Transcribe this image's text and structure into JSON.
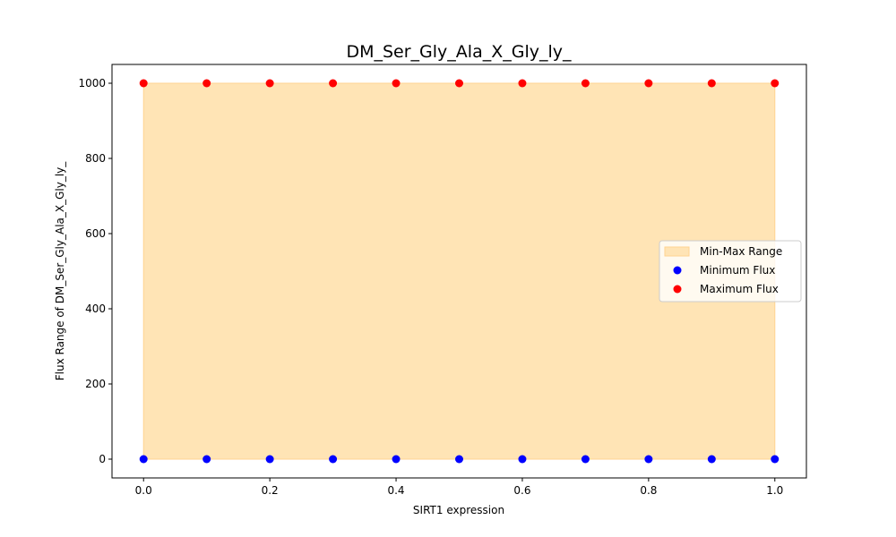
{
  "chart_data": {
    "type": "scatter",
    "title": "DM_Ser_Gly_Ala_X_Gly_ly_",
    "xlabel": "SIRT1 expression",
    "ylabel": "Flux Range of DM_Ser_Gly_Ala_X_Gly_ly_",
    "xlim": [
      -0.05,
      1.05
    ],
    "ylim": [
      -50,
      1050
    ],
    "xticks": [
      0.0,
      0.2,
      0.4,
      0.6,
      0.8,
      1.0
    ],
    "xtick_labels": [
      "0.0",
      "0.2",
      "0.4",
      "0.6",
      "0.8",
      "1.0"
    ],
    "yticks": [
      0,
      200,
      400,
      600,
      800,
      1000
    ],
    "ytick_labels": [
      "0",
      "200",
      "400",
      "600",
      "800",
      "1000"
    ],
    "x": [
      0.0,
      0.1,
      0.2,
      0.3,
      0.4,
      0.5,
      0.6,
      0.7,
      0.8,
      0.9,
      1.0
    ],
    "range_fill": {
      "name": "Min-Max Range",
      "color": "#ffe4b5",
      "edge_color": "#ffd391",
      "lower": [
        0,
        0,
        0,
        0,
        0,
        0,
        0,
        0,
        0,
        0,
        0
      ],
      "upper": [
        1000,
        1000,
        1000,
        1000,
        1000,
        1000,
        1000,
        1000,
        1000,
        1000,
        1000
      ]
    },
    "series": [
      {
        "name": "Minimum Flux",
        "color": "#0000ff",
        "values": [
          0,
          0,
          0,
          0,
          0,
          0,
          0,
          0,
          0,
          0,
          0
        ]
      },
      {
        "name": "Maximum Flux",
        "color": "#ff0000",
        "values": [
          1000,
          1000,
          1000,
          1000,
          1000,
          1000,
          1000,
          1000,
          1000,
          1000,
          1000
        ]
      }
    ],
    "legend": {
      "placement": "center-right",
      "entries": [
        "Min-Max Range",
        "Minimum Flux",
        "Maximum Flux"
      ]
    },
    "grid": false
  }
}
